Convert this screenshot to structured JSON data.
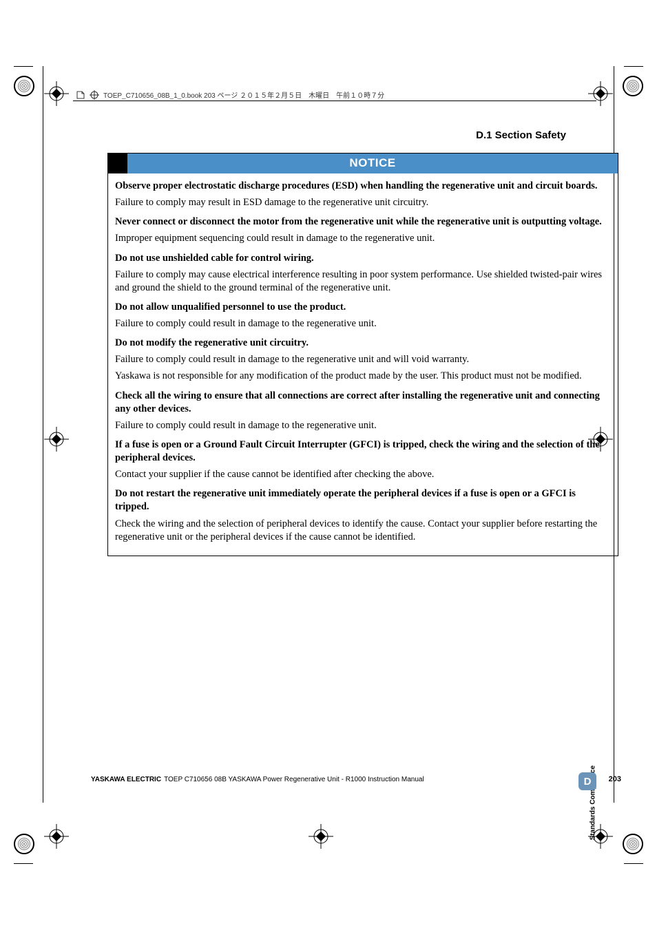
{
  "crop": {
    "header_text": "TOEP_C710656_08B_1_0.book  203 ページ  ２０１５年２月５日　木曜日　午前１０時７分"
  },
  "section_header": "D.1  Section Safety",
  "notice": {
    "title": "NOTICE",
    "title_bg": "#4a8fc8",
    "title_color": "#ffffff",
    "border_accent": "#000000",
    "items": [
      {
        "bold": true,
        "gap": false,
        "text": "Observe proper electrostatic discharge procedures (ESD) when handling the regenerative unit and circuit boards."
      },
      {
        "bold": false,
        "gap": true,
        "text": "Failure to comply may result in ESD damage to the regenerative unit circuitry."
      },
      {
        "bold": true,
        "gap": false,
        "text": "Never connect or disconnect the motor from the regenerative unit while the regenerative unit is outputting voltage."
      },
      {
        "bold": false,
        "gap": true,
        "text": "Improper equipment sequencing could result in damage to the regenerative unit."
      },
      {
        "bold": true,
        "gap": false,
        "text": "Do not use unshielded cable for control wiring."
      },
      {
        "bold": false,
        "gap": true,
        "text": "Failure to comply may cause electrical interference resulting in poor system performance. Use shielded twisted-pair wires and ground the shield to the ground terminal of the regenerative unit."
      },
      {
        "bold": true,
        "gap": false,
        "text": "Do not allow unqualified personnel to use the product."
      },
      {
        "bold": false,
        "gap": true,
        "text": "Failure to comply could result in damage to the regenerative unit."
      },
      {
        "bold": true,
        "gap": false,
        "text": "Do not modify the regenerative unit circuitry."
      },
      {
        "bold": false,
        "gap": false,
        "text": "Failure to comply could result in damage to the regenerative unit and will void warranty."
      },
      {
        "bold": false,
        "gap": true,
        "text": "Yaskawa is not responsible for any modification of the product made by the user. This product must not be modified."
      },
      {
        "bold": true,
        "gap": false,
        "text": "Check all the wiring to ensure that all connections are correct after installing the regenerative unit and connecting any other devices."
      },
      {
        "bold": false,
        "gap": true,
        "text": "Failure to comply could result in damage to the regenerative unit."
      },
      {
        "bold": true,
        "gap": false,
        "text": "If a fuse is open or a Ground Fault Circuit Interrupter (GFCI) is tripped, check the wiring and the selection of the peripheral devices."
      },
      {
        "bold": false,
        "gap": true,
        "text": "Contact your supplier if the cause cannot be identified after checking the above."
      },
      {
        "bold": true,
        "gap": false,
        "text": "Do not restart the regenerative unit immediately operate the peripheral devices if a fuse is open or a GFCI is tripped."
      },
      {
        "bold": false,
        "gap": false,
        "text": "Check the wiring and the selection of peripheral devices to identify the cause. Contact your supplier before restarting the regenerative unit or the peripheral devices if the cause cannot be identified."
      }
    ]
  },
  "footer": {
    "company": "YASKAWA ELECTRIC",
    "title": "TOEP C710656 08B YASKAWA Power Regenerative Unit - R1000 Instruction Manual",
    "page": "203"
  },
  "side": {
    "tab_letter": "D",
    "tab_bg": "#6b94b8",
    "label": "Standards Compliance"
  }
}
